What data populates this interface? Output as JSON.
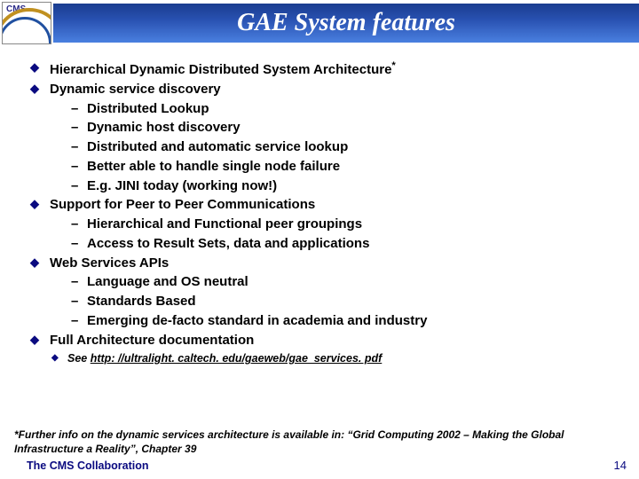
{
  "header": {
    "logo_label": "CMS",
    "title": "GAE System features"
  },
  "bullets": {
    "b1": "Hierarchical Dynamic Distributed System Architecture",
    "b1_sup": "*",
    "b2": "Dynamic service discovery",
    "b2_subs": {
      "s1": "Distributed Lookup",
      "s2": "Dynamic host discovery",
      "s3": "Distributed and automatic service lookup",
      "s4": "Better able to handle single node failure",
      "s5": "E.g. JINI today (working now!)"
    },
    "b3": "Support for Peer to Peer Communications",
    "b3_subs": {
      "s1": "Hierarchical and Functional peer groupings",
      "s2": "Access to Result Sets, data and applications"
    },
    "b4": "Web Services APIs",
    "b4_subs": {
      "s1": "Language and OS neutral",
      "s2": "Standards Based",
      "s3": "Emerging de-facto standard in academia and industry"
    },
    "b5": "Full Architecture documentation"
  },
  "see": {
    "prefix": "See ",
    "url": "http: //ultralight. caltech. edu/gaeweb/gae_services. pdf"
  },
  "footnote": "*Further info on the dynamic services architecture is available in: “Grid Computing 2002 – Making the Global Infrastructure a Reality”, Chapter 39",
  "collab": "The CMS Collaboration",
  "pagenum": "14",
  "colors": {
    "accent": "#0a0a80",
    "title_gradient_top": "#1a3d8f",
    "title_gradient_bottom": "#4a80e0",
    "text": "#000000",
    "title_text": "#ffffff"
  }
}
